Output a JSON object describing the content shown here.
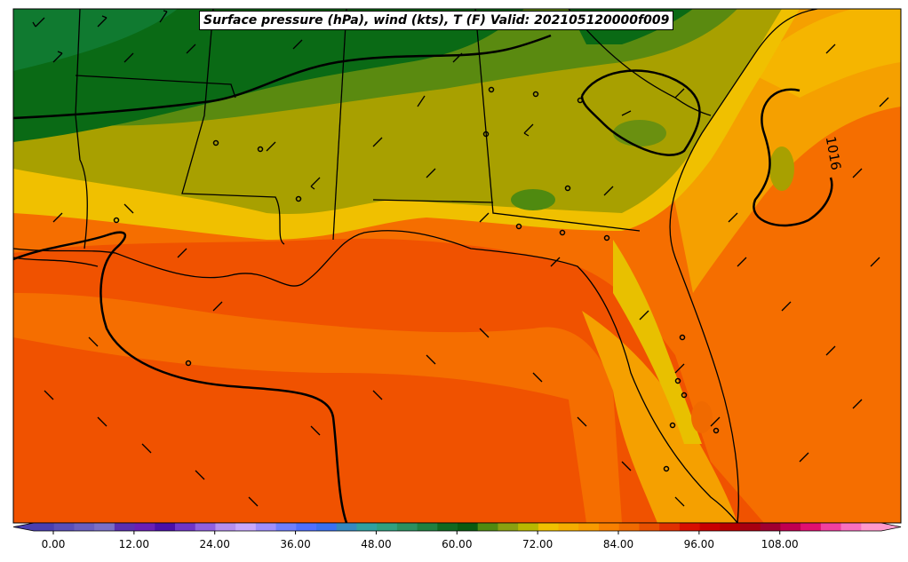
{
  "title": "Surface pressure (hPa), wind (kts), T (F) Valid: 202105120000f009",
  "isobar_label": "1016",
  "colorbar": {
    "ticks": [
      "0.00",
      "12.00",
      "24.00",
      "36.00",
      "48.00",
      "60.00",
      "72.00",
      "84.00",
      "96.00",
      "108.00"
    ],
    "colors": [
      "#4a3fb0",
      "#5a4fb8",
      "#6a5fbf",
      "#7a6fc6",
      "#5b2fb0",
      "#6a1fb5",
      "#4b10a8",
      "#6f35c8",
      "#9060e0",
      "#b58ff0",
      "#c8a8ff",
      "#9f8fff",
      "#6f7fff",
      "#4f6fff",
      "#3a70f0",
      "#3588c0",
      "#30a0a0",
      "#2fa080",
      "#2a9060",
      "#1e8040",
      "#106820",
      "#0a5a10",
      "#4f8a10",
      "#8aa010",
      "#b8b800",
      "#f0c000",
      "#f5ad00",
      "#f89a00",
      "#f88000",
      "#f06a00",
      "#e85000",
      "#e03000",
      "#d81000",
      "#c80000",
      "#b80000",
      "#a80010",
      "#a00030",
      "#c00050",
      "#e01070",
      "#f040a0",
      "#f870c0",
      "#ff99cc"
    ]
  }
}
